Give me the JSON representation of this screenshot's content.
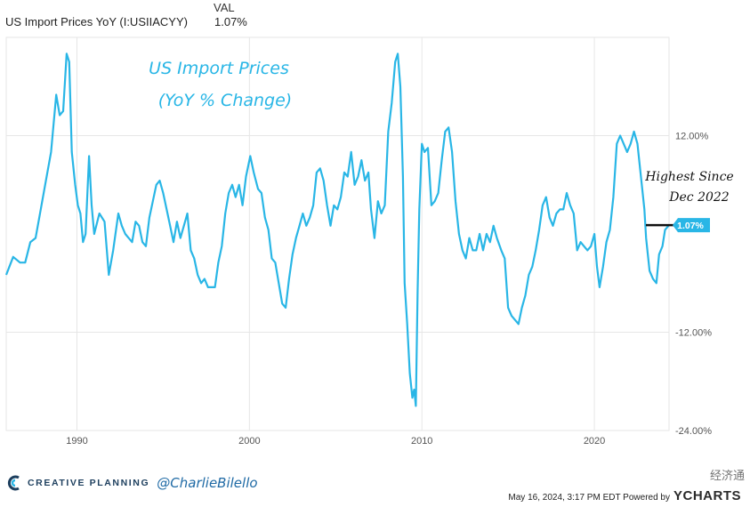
{
  "header": {
    "column_label": "VAL",
    "series_name": "US Import Prices YoY (I:USIIACYY)",
    "series_value": "1.07%"
  },
  "annotations": {
    "title_line1": "US Import Prices",
    "title_line2": "(YoY % Change)",
    "note_line1": "Highest Since",
    "note_line2": "Dec 2022",
    "current_badge": "1.07%"
  },
  "footer": {
    "brand": "CREATIVE PLANNING",
    "handle": "@CharlieBilello",
    "timestamp": "May 16, 2024, 3:17 PM EDT Powered by",
    "ycharts": "YCHARTS",
    "watermark": "经济通"
  },
  "colors": {
    "line": "#29b6e6",
    "grid": "#e6e6e6",
    "badge": "#29b6e6"
  },
  "chart_data": {
    "type": "line",
    "title": "US Import Prices",
    "subtitle": "(YoY % Change)",
    "xlabel": "",
    "ylabel": "",
    "xlim": [
      1985.9,
      2024.33
    ],
    "ylim": [
      -24,
      24
    ],
    "y_ticks": [
      12,
      -12,
      -24
    ],
    "y_tick_labels": [
      "12.00%",
      "-12.00%",
      "-24.00%"
    ],
    "x_ticks": [
      1990,
      2000,
      2010,
      2020
    ],
    "x_tick_labels": [
      "1990",
      "2000",
      "2010",
      "2020"
    ],
    "grid": true,
    "last_value": 1.07,
    "series": [
      {
        "values": [
          [
            1985.9,
            -5
          ],
          [
            1986.3,
            -2.8
          ],
          [
            1986.7,
            -3.5
          ],
          [
            1987.0,
            -3.5
          ],
          [
            1987.3,
            -1
          ],
          [
            1987.6,
            -0.5
          ],
          [
            1987.9,
            3
          ],
          [
            1988.2,
            6.5
          ],
          [
            1988.5,
            10
          ],
          [
            1988.8,
            17
          ],
          [
            1989.0,
            14.5
          ],
          [
            1989.2,
            15
          ],
          [
            1989.4,
            22
          ],
          [
            1989.55,
            21
          ],
          [
            1989.7,
            10
          ],
          [
            1989.9,
            6
          ],
          [
            1990.05,
            3.5
          ],
          [
            1990.2,
            2.5
          ],
          [
            1990.35,
            -1
          ],
          [
            1990.5,
            0
          ],
          [
            1990.7,
            9.5
          ],
          [
            1990.85,
            3.5
          ],
          [
            1991.0,
            0
          ],
          [
            1991.3,
            2.5
          ],
          [
            1991.6,
            1.5
          ],
          [
            1991.85,
            -5
          ],
          [
            1992.1,
            -2
          ],
          [
            1992.4,
            2.5
          ],
          [
            1992.6,
            1
          ],
          [
            1992.8,
            0
          ],
          [
            1993.0,
            -0.5
          ],
          [
            1993.2,
            -1
          ],
          [
            1993.4,
            1.5
          ],
          [
            1993.6,
            1
          ],
          [
            1993.8,
            -1
          ],
          [
            1994.0,
            -1.5
          ],
          [
            1994.2,
            2
          ],
          [
            1994.4,
            4
          ],
          [
            1994.6,
            6
          ],
          [
            1994.8,
            6.5
          ],
          [
            1995.0,
            5
          ],
          [
            1995.2,
            3
          ],
          [
            1995.4,
            1
          ],
          [
            1995.6,
            -1
          ],
          [
            1995.8,
            1.5
          ],
          [
            1996.0,
            -0.5
          ],
          [
            1996.2,
            1
          ],
          [
            1996.4,
            2.5
          ],
          [
            1996.6,
            -2
          ],
          [
            1996.8,
            -3
          ],
          [
            1997.0,
            -5
          ],
          [
            1997.2,
            -6
          ],
          [
            1997.4,
            -5.5
          ],
          [
            1997.6,
            -6.5
          ],
          [
            1997.8,
            -6.5
          ],
          [
            1998.0,
            -6.5
          ],
          [
            1998.2,
            -3.5
          ],
          [
            1998.4,
            -1.5
          ],
          [
            1998.6,
            2.5
          ],
          [
            1998.8,
            5
          ],
          [
            1999.0,
            6
          ],
          [
            1999.2,
            4.5
          ],
          [
            1999.4,
            6
          ],
          [
            1999.6,
            3.5
          ],
          [
            1999.8,
            7
          ],
          [
            2000.05,
            9.5
          ],
          [
            2000.25,
            7.5
          ],
          [
            2000.5,
            5.5
          ],
          [
            2000.7,
            5
          ],
          [
            2000.9,
            2
          ],
          [
            2001.1,
            0.5
          ],
          [
            2001.3,
            -3
          ],
          [
            2001.5,
            -3.5
          ],
          [
            2001.7,
            -6
          ],
          [
            2001.9,
            -8.5
          ],
          [
            2002.1,
            -9
          ],
          [
            2002.3,
            -5.5
          ],
          [
            2002.5,
            -2.5
          ],
          [
            2002.7,
            -0.5
          ],
          [
            2002.9,
            1
          ],
          [
            2003.1,
            2.5
          ],
          [
            2003.3,
            1
          ],
          [
            2003.5,
            2
          ],
          [
            2003.7,
            3.5
          ],
          [
            2003.9,
            7.5
          ],
          [
            2004.1,
            8
          ],
          [
            2004.3,
            6.5
          ],
          [
            2004.5,
            3.5
          ],
          [
            2004.7,
            1
          ],
          [
            2004.9,
            3.5
          ],
          [
            2005.1,
            3
          ],
          [
            2005.3,
            4.5
          ],
          [
            2005.5,
            7.5
          ],
          [
            2005.7,
            7
          ],
          [
            2005.9,
            10
          ],
          [
            2006.1,
            6
          ],
          [
            2006.3,
            7
          ],
          [
            2006.5,
            9
          ],
          [
            2006.7,
            6.5
          ],
          [
            2006.9,
            7.5
          ],
          [
            2007.05,
            3
          ],
          [
            2007.25,
            -0.5
          ],
          [
            2007.45,
            4
          ],
          [
            2007.65,
            2.5
          ],
          [
            2007.85,
            3.5
          ],
          [
            2008.05,
            12.5
          ],
          [
            2008.25,
            16
          ],
          [
            2008.45,
            21
          ],
          [
            2008.6,
            22
          ],
          [
            2008.75,
            18
          ],
          [
            2008.9,
            7
          ],
          [
            2009.0,
            -6
          ],
          [
            2009.15,
            -11
          ],
          [
            2009.3,
            -17
          ],
          [
            2009.45,
            -20
          ],
          [
            2009.55,
            -19
          ],
          [
            2009.65,
            -21
          ],
          [
            2009.75,
            -7
          ],
          [
            2009.85,
            3
          ],
          [
            2010.0,
            11
          ],
          [
            2010.15,
            10
          ],
          [
            2010.35,
            10.5
          ],
          [
            2010.55,
            3.5
          ],
          [
            2010.75,
            4
          ],
          [
            2010.95,
            5
          ],
          [
            2011.15,
            9
          ],
          [
            2011.35,
            12.5
          ],
          [
            2011.55,
            13
          ],
          [
            2011.75,
            10
          ],
          [
            2011.95,
            4
          ],
          [
            2012.15,
            0
          ],
          [
            2012.35,
            -2
          ],
          [
            2012.55,
            -3
          ],
          [
            2012.75,
            -0.5
          ],
          [
            2012.95,
            -2
          ],
          [
            2013.15,
            -2
          ],
          [
            2013.35,
            0
          ],
          [
            2013.55,
            -2
          ],
          [
            2013.75,
            0
          ],
          [
            2013.95,
            -1
          ],
          [
            2014.15,
            1
          ],
          [
            2014.35,
            -0.5
          ],
          [
            2014.6,
            -2
          ],
          [
            2014.8,
            -3
          ],
          [
            2015.0,
            -9
          ],
          [
            2015.2,
            -10
          ],
          [
            2015.4,
            -10.5
          ],
          [
            2015.6,
            -11
          ],
          [
            2015.8,
            -9
          ],
          [
            2016.0,
            -7.5
          ],
          [
            2016.2,
            -5
          ],
          [
            2016.4,
            -4
          ],
          [
            2016.6,
            -2
          ],
          [
            2016.8,
            0.5
          ],
          [
            2017.0,
            3.5
          ],
          [
            2017.2,
            4.5
          ],
          [
            2017.4,
            2
          ],
          [
            2017.6,
            1
          ],
          [
            2017.8,
            2.5
          ],
          [
            2018.0,
            3
          ],
          [
            2018.2,
            3
          ],
          [
            2018.4,
            5
          ],
          [
            2018.6,
            3.5
          ],
          [
            2018.8,
            2.5
          ],
          [
            2019.0,
            -2
          ],
          [
            2019.2,
            -1
          ],
          [
            2019.4,
            -1.5
          ],
          [
            2019.6,
            -2
          ],
          [
            2019.8,
            -1.5
          ],
          [
            2020.0,
            0
          ],
          [
            2020.15,
            -4
          ],
          [
            2020.3,
            -6.5
          ],
          [
            2020.5,
            -4
          ],
          [
            2020.7,
            -1
          ],
          [
            2020.9,
            0.5
          ],
          [
            2021.1,
            4.5
          ],
          [
            2021.3,
            11
          ],
          [
            2021.5,
            12
          ],
          [
            2021.7,
            11
          ],
          [
            2021.9,
            10
          ],
          [
            2022.1,
            11
          ],
          [
            2022.3,
            12.5
          ],
          [
            2022.5,
            11
          ],
          [
            2022.7,
            7
          ],
          [
            2022.9,
            3
          ],
          [
            2023.0,
            -0.5
          ],
          [
            2023.2,
            -4.5
          ],
          [
            2023.4,
            -5.5
          ],
          [
            2023.6,
            -6
          ],
          [
            2023.75,
            -2.5
          ],
          [
            2023.95,
            -1.5
          ],
          [
            2024.1,
            0.5
          ],
          [
            2024.33,
            1.07
          ]
        ]
      }
    ]
  }
}
